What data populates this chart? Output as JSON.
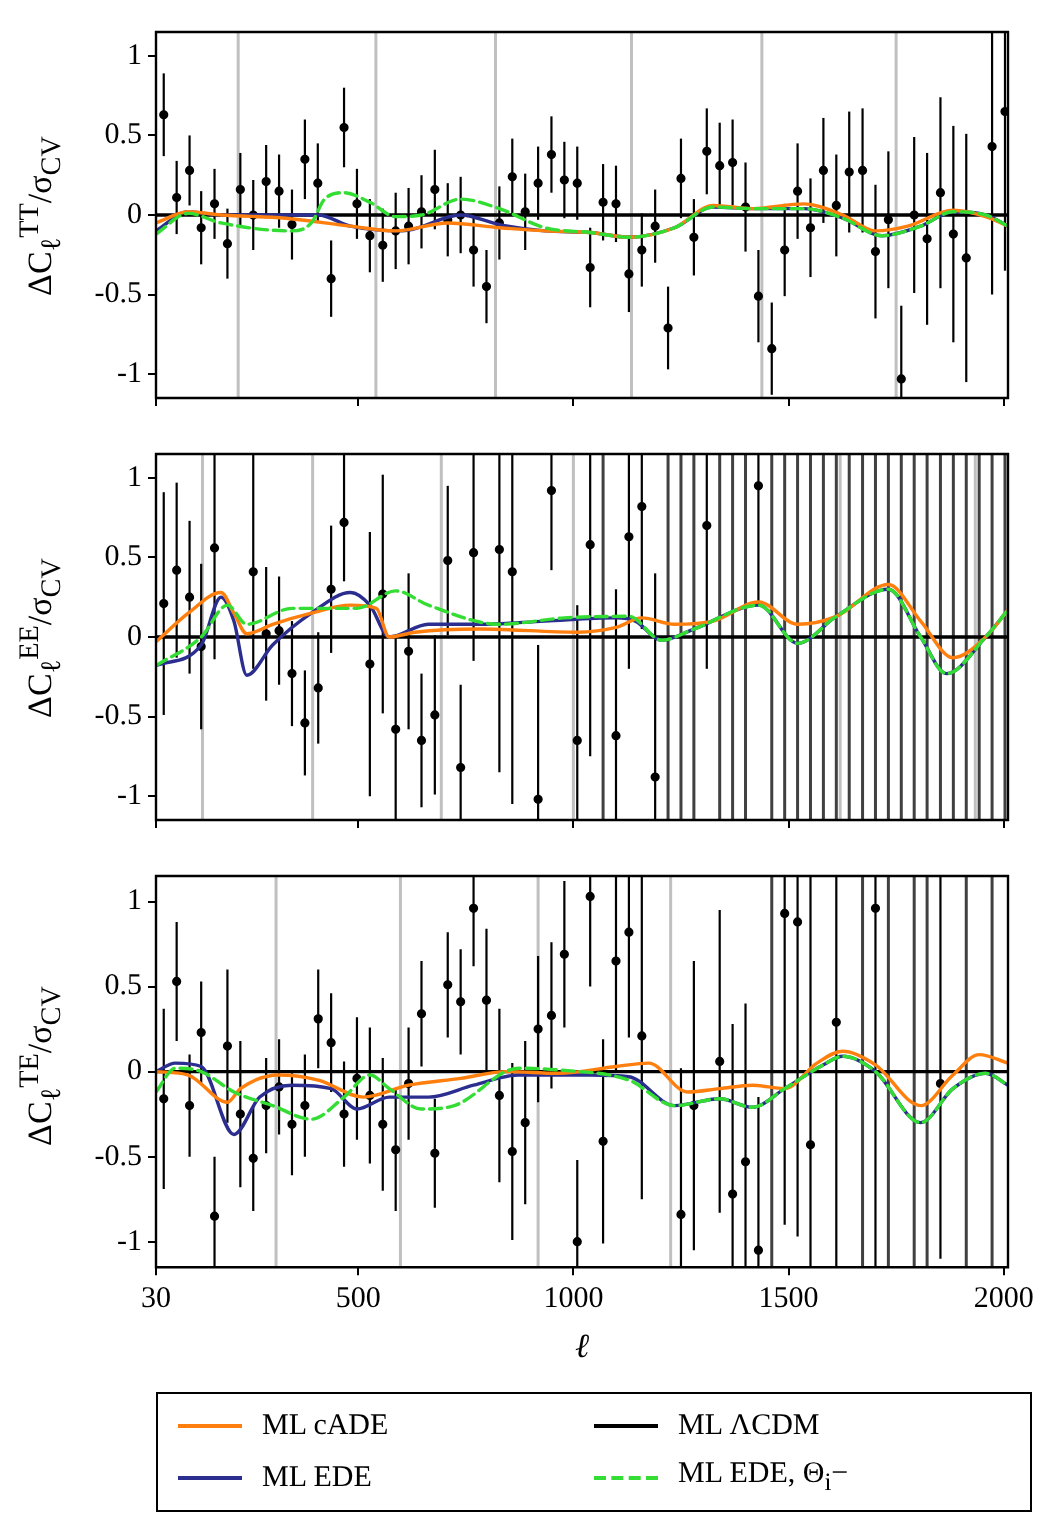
{
  "chart_data": [
    {
      "type": "scatter",
      "ylabel": "ΔC$_{ℓ}$$^{TT}$/σ$_{CV}$",
      "xlim": [
        30,
        2010
      ],
      "xticks": [
        30,
        500,
        1000,
        1500,
        2000
      ],
      "ylim": [
        -1.15,
        1.15
      ],
      "yticks": [
        -1,
        -0.5,
        0,
        0.5,
        1
      ],
      "tick_labels": "y",
      "series": [
        {
          "type": "scatter",
          "color": "#000000",
          "marker": "circle",
          "x": [
            48,
            78,
            108,
            135,
            166,
            196,
            226,
            256,
            286,
            316,
            346,
            376,
            406,
            437,
            467,
            497,
            527,
            557,
            587,
            617,
            647,
            678,
            708,
            738,
            768,
            798,
            828,
            858,
            888,
            918,
            949,
            979,
            1009,
            1039,
            1069,
            1099,
            1129,
            1159,
            1190,
            1220,
            1250,
            1280,
            1310,
            1340,
            1370,
            1400,
            1430,
            1461,
            1491,
            1521,
            1551,
            1581,
            1611,
            1641,
            1672,
            1702,
            1732,
            1762,
            1792,
            1822,
            1853,
            1883,
            1913,
            1973,
            2003
          ],
          "values": [
            0.63,
            0.11,
            0.28,
            -0.08,
            0.07,
            -0.18,
            0.16,
            0.0,
            0.21,
            0.15,
            -0.06,
            0.35,
            0.2,
            -0.4,
            0.55,
            0.07,
            -0.13,
            -0.19,
            -0.1,
            -0.07,
            0.02,
            0.16,
            -0.03,
            0.0,
            -0.22,
            -0.45,
            -0.05,
            0.24,
            0.02,
            0.2,
            0.38,
            0.22,
            0.2,
            -0.33,
            0.08,
            0.07,
            -0.37,
            -0.22,
            -0.07,
            -0.71,
            0.23,
            -0.14,
            0.4,
            0.31,
            0.33,
            0.05,
            -0.51,
            -0.84,
            -0.22,
            0.15,
            -0.08,
            0.28,
            0.06,
            0.27,
            0.28,
            -0.23,
            -0.03,
            -1.03,
            0.0,
            -0.15,
            0.14,
            -0.12,
            -0.27,
            0.43,
            0.65
          ],
          "errors": [
            0.26,
            0.23,
            0.22,
            0.23,
            0.22,
            0.22,
            0.23,
            0.22,
            0.23,
            0.23,
            0.22,
            0.25,
            0.25,
            0.24,
            0.25,
            0.22,
            0.23,
            0.23,
            0.24,
            0.24,
            0.23,
            0.25,
            0.23,
            0.24,
            0.23,
            0.23,
            0.23,
            0.24,
            0.24,
            0.23,
            0.24,
            0.24,
            0.23,
            0.25,
            0.24,
            0.24,
            0.24,
            0.23,
            0.23,
            0.26,
            0.25,
            0.24,
            0.27,
            0.27,
            0.27,
            0.28,
            0.29,
            0.29,
            0.29,
            0.3,
            0.31,
            0.33,
            0.32,
            0.38,
            0.39,
            0.42,
            0.43,
            [
              -1.15,
              -0.57
            ],
            0.49,
            0.54,
            0.6,
            0.68,
            0.78,
            [
              -0.5,
              1.15
            ],
            [
              -0.35,
              1.15
            ]
          ]
        },
        {
          "type": "line",
          "color": "#ff7f0e",
          "x": [
            30,
            105,
            181,
            331,
            482,
            587,
            708,
            828,
            934,
            1039,
            1129,
            1235,
            1325,
            1416,
            1536,
            1626,
            1702,
            1777,
            1882,
            1958,
            2010
          ],
          "values": [
            -0.05,
            0.02,
            0.0,
            -0.02,
            -0.07,
            -0.1,
            -0.05,
            -0.08,
            -0.1,
            -0.11,
            -0.14,
            -0.08,
            0.06,
            0.04,
            0.07,
            0.0,
            -0.1,
            -0.07,
            0.03,
            -0.01,
            -0.07
          ]
        },
        {
          "type": "line",
          "color": "#2b2d8f",
          "x": [
            30,
            105,
            181,
            331,
            407,
            482,
            602,
            738,
            828,
            934,
            1039,
            1129,
            1235,
            1325,
            1416,
            1536,
            1626,
            1717,
            1807,
            1882,
            1958,
            2010
          ],
          "values": [
            -0.1,
            0.02,
            0.0,
            0.0,
            0.0,
            -0.07,
            -0.1,
            0.0,
            -0.06,
            -0.1,
            -0.11,
            -0.14,
            -0.08,
            0.05,
            0.04,
            0.04,
            -0.02,
            -0.13,
            -0.07,
            0.02,
            0.0,
            -0.07
          ]
        },
        {
          "type": "line",
          "color": "#000000",
          "x": [
            30,
            2010
          ],
          "values": [
            0,
            0
          ]
        },
        {
          "type": "line",
          "color": "#33dd33",
          "line_style": "dashed",
          "x": [
            30,
            105,
            181,
            346,
            391,
            422,
            467,
            527,
            587,
            647,
            738,
            828,
            934,
            1039,
            1129,
            1235,
            1325,
            1416,
            1536,
            1626,
            1717,
            1807,
            1882,
            1958,
            2010
          ],
          "values": [
            -0.12,
            0.01,
            -0.05,
            -0.1,
            -0.05,
            0.1,
            0.14,
            0.08,
            -0.01,
            0.0,
            0.1,
            0.04,
            -0.08,
            -0.11,
            -0.14,
            -0.08,
            0.05,
            0.04,
            0.04,
            -0.02,
            -0.13,
            -0.07,
            0.02,
            0.0,
            -0.07
          ]
        }
      ],
      "ref_lines": [
        {
          "axis": "x",
          "value": 221,
          "color": "#c0c0c0"
        },
        {
          "axis": "x",
          "value": 541,
          "color": "#c0c0c0"
        },
        {
          "axis": "x",
          "value": 819,
          "color": "#c0c0c0"
        },
        {
          "axis": "x",
          "value": 1135,
          "color": "#c0c0c0"
        },
        {
          "axis": "x",
          "value": 1438,
          "color": "#c0c0c0"
        },
        {
          "axis": "x",
          "value": 1750,
          "color": "#c0c0c0"
        }
      ]
    },
    {
      "type": "scatter",
      "ylabel": "ΔC$_{ℓ}$$^{EE}$/σ$_{CV}$",
      "xlim": [
        30,
        2010
      ],
      "xticks": [
        30,
        500,
        1000,
        1500,
        2000
      ],
      "ylim": [
        -1.15,
        1.15
      ],
      "yticks": [
        -1,
        -0.5,
        0,
        0.5,
        1
      ],
      "tick_labels": "y",
      "series": [
        {
          "type": "scatter",
          "color": "#000000",
          "marker": "circle",
          "x": [
            48,
            78,
            108,
            135,
            166,
            256,
            286,
            316,
            346,
            376,
            407,
            437,
            467,
            527,
            557,
            587,
            617,
            647,
            678,
            708,
            738,
            768,
            828,
            858,
            918,
            949,
            1009,
            1039,
            1099,
            1129,
            1159,
            1190,
            1310,
            1430
          ],
          "values": [
            0.21,
            0.42,
            0.25,
            -0.06,
            0.56,
            0.41,
            0.02,
            0.04,
            -0.23,
            -0.54,
            -0.32,
            0.3,
            0.72,
            -0.17,
            0.27,
            -0.58,
            -0.09,
            -0.65,
            -0.49,
            0.48,
            -0.82,
            0.53,
            0.55,
            0.41,
            -1.02,
            0.92,
            -0.65,
            0.58,
            -0.62,
            0.63,
            0.82,
            -0.88,
            0.7,
            0.95
          ],
          "errors": [
            0.7,
            0.55,
            0.48,
            0.52,
            [
              -0.14,
              1.15
            ],
            [
              -0.2,
              1.15
            ],
            0.42,
            0.34,
            0.33,
            0.33,
            0.35,
            0.4,
            [
              0.35,
              1.15
            ],
            0.83,
            0.75,
            [
              -1.15,
              0.0
            ],
            0.49,
            0.42,
            0.5,
            0.47,
            [
              -1.15,
              -0.3
            ],
            [
              -0.15,
              1.15
            ],
            [
              -0.85,
              1.15
            ],
            [
              -1.05,
              1.15
            ],
            [
              -1.15,
              -0.05
            ],
            [
              0.42,
              1.15
            ],
            [
              -1.15,
              0.2
            ],
            [
              -0.75,
              1.15
            ],
            [
              -1.15,
              0.3
            ],
            [
              -0.2,
              1.15
            ],
            [
              0.05,
              1.15
            ],
            [
              -1.15,
              0.4
            ],
            [
              -0.2,
              1.15
            ],
            [
              0.2,
              1.15
            ]
          ]
        },
        {
          "type": "line",
          "color": "#ff7f0e",
          "x": [
            30,
            105,
            181,
            211,
            241,
            301,
            391,
            482,
            542,
            572,
            632,
            783,
            1009,
            1099,
            1159,
            1235,
            1325,
            1431,
            1521,
            1611,
            1732,
            1807,
            1882,
            1958,
            2010
          ],
          "values": [
            -0.03,
            0.15,
            0.28,
            0.15,
            0.02,
            0.08,
            0.15,
            0.2,
            0.18,
            0.0,
            0.03,
            0.05,
            0.03,
            0.06,
            0.12,
            0.08,
            0.1,
            0.22,
            0.08,
            0.13,
            0.33,
            0.1,
            -0.13,
            0.0,
            0.17
          ]
        },
        {
          "type": "line",
          "color": "#2b2d8f",
          "x": [
            30,
            135,
            181,
            211,
            241,
            301,
            391,
            482,
            527,
            572,
            663,
            783,
            934,
            1099,
            1144,
            1205,
            1280,
            1431,
            1521,
            1611,
            1732,
            1807,
            1867,
            1958,
            2010
          ],
          "values": [
            -0.18,
            -0.05,
            0.25,
            0.1,
            -0.24,
            -0.05,
            0.15,
            0.28,
            0.2,
            0.0,
            0.08,
            0.08,
            0.1,
            0.12,
            0.1,
            -0.02,
            0.05,
            0.2,
            -0.04,
            0.13,
            0.3,
            0.0,
            -0.23,
            0.0,
            0.17
          ]
        },
        {
          "type": "line",
          "color": "#000000",
          "x": [
            30,
            2010
          ],
          "values": [
            0,
            0
          ]
        },
        {
          "type": "line",
          "color": "#33dd33",
          "line_style": "dashed",
          "x": [
            30,
            135,
            196,
            241,
            346,
            497,
            587,
            663,
            828,
            979,
            1129,
            1205,
            1280,
            1431,
            1521,
            1611,
            1732,
            1807,
            1867,
            1958,
            2010
          ],
          "values": [
            -0.18,
            0.0,
            0.2,
            0.08,
            0.18,
            0.18,
            0.29,
            0.2,
            0.08,
            0.12,
            0.13,
            -0.02,
            0.05,
            0.2,
            -0.04,
            0.13,
            0.3,
            0.0,
            -0.23,
            0.0,
            0.17
          ]
        }
      ],
      "ref_lines": [
        {
          "axis": "x",
          "value": 138,
          "color": "#c0c0c0"
        },
        {
          "axis": "x",
          "value": 394,
          "color": "#c0c0c0"
        },
        {
          "axis": "x",
          "value": 693,
          "color": "#c0c0c0"
        },
        {
          "axis": "x",
          "value": 1000,
          "color": "#c0c0c0"
        },
        {
          "axis": "x",
          "value": 1620,
          "color": "#c0c0c0"
        },
        {
          "axis": "x",
          "value": 1934,
          "color": "#c0c0c0"
        },
        {
          "axis": "x",
          "value": 1069,
          "color": "#404040"
        },
        {
          "axis": "x",
          "value": 1220,
          "color": "#404040"
        },
        {
          "axis": "x",
          "value": 1250,
          "color": "#404040"
        },
        {
          "axis": "x",
          "value": 1280,
          "color": "#404040"
        },
        {
          "axis": "x",
          "value": 1340,
          "color": "#404040"
        },
        {
          "axis": "x",
          "value": 1370,
          "color": "#404040"
        },
        {
          "axis": "x",
          "value": 1400,
          "color": "#404040"
        },
        {
          "axis": "x",
          "value": 1461,
          "color": "#404040"
        },
        {
          "axis": "x",
          "value": 1491,
          "color": "#404040"
        },
        {
          "axis": "x",
          "value": 1521,
          "color": "#404040"
        },
        {
          "axis": "x",
          "value": 1551,
          "color": "#404040"
        },
        {
          "axis": "x",
          "value": 1581,
          "color": "#404040"
        },
        {
          "axis": "x",
          "value": 1611,
          "color": "#404040"
        },
        {
          "axis": "x",
          "value": 1641,
          "color": "#404040"
        },
        {
          "axis": "x",
          "value": 1672,
          "color": "#404040"
        },
        {
          "axis": "x",
          "value": 1702,
          "color": "#404040"
        },
        {
          "axis": "x",
          "value": 1732,
          "color": "#404040"
        },
        {
          "axis": "x",
          "value": 1762,
          "color": "#404040"
        },
        {
          "axis": "x",
          "value": 1792,
          "color": "#404040"
        },
        {
          "axis": "x",
          "value": 1822,
          "color": "#404040"
        },
        {
          "axis": "x",
          "value": 1853,
          "color": "#404040"
        },
        {
          "axis": "x",
          "value": 1883,
          "color": "#404040"
        },
        {
          "axis": "x",
          "value": 1913,
          "color": "#404040"
        },
        {
          "axis": "x",
          "value": 1943,
          "color": "#404040"
        },
        {
          "axis": "x",
          "value": 1973,
          "color": "#404040"
        },
        {
          "axis": "x",
          "value": 2003,
          "color": "#404040"
        }
      ]
    },
    {
      "type": "scatter",
      "ylabel": "ΔC$_{ℓ}$$^{TE}$/σ$_{CV}$",
      "xlabel": "ℓ",
      "xlim": [
        30,
        2010
      ],
      "xticks": [
        30,
        500,
        1000,
        1500,
        2000
      ],
      "ylim": [
        -1.15,
        1.15
      ],
      "yticks": [
        -1,
        -0.5,
        0,
        0.5,
        1
      ],
      "legend": "bottom",
      "series": [
        {
          "type": "scatter",
          "color": "#000000",
          "marker": "circle",
          "x": [
            48,
            78,
            108,
            135,
            166,
            196,
            226,
            256,
            286,
            316,
            346,
            376,
            407,
            437,
            467,
            497,
            527,
            557,
            587,
            617,
            647,
            678,
            708,
            738,
            768,
            798,
            828,
            858,
            888,
            918,
            949,
            979,
            1009,
            1039,
            1069,
            1099,
            1129,
            1159,
            1250,
            1280,
            1340,
            1370,
            1400,
            1430,
            1491,
            1521,
            1551,
            1611,
            1702,
            1853
          ],
          "values": [
            -0.16,
            0.53,
            -0.2,
            0.23,
            -0.85,
            0.15,
            -0.25,
            -0.51,
            -0.2,
            -0.09,
            -0.31,
            -0.2,
            0.31,
            0.17,
            -0.25,
            -0.04,
            -0.14,
            -0.31,
            -0.46,
            -0.07,
            0.34,
            -0.48,
            0.51,
            0.41,
            0.96,
            0.42,
            -0.14,
            -0.47,
            -0.3,
            0.25,
            0.33,
            0.69,
            -1.0,
            1.03,
            -0.41,
            0.65,
            0.82,
            0.21,
            -0.84,
            -0.2,
            0.06,
            -0.72,
            -0.53,
            -1.05,
            0.93,
            0.88,
            -0.43,
            0.29,
            0.96,
            -0.07
          ],
          "errors": [
            0.53,
            0.35,
            0.3,
            0.3,
            [
              -1.15,
              -0.5
            ],
            0.45,
            0.43,
            0.31,
            0.28,
            0.28,
            0.3,
            0.3,
            0.29,
            0.29,
            0.31,
            0.36,
            0.4,
            0.39,
            0.36,
            0.33,
            0.31,
            0.32,
            0.31,
            0.31,
            [
              0.62,
              1.15
            ],
            0.42,
            0.51,
            0.52,
            0.48,
            0.43,
            0.43,
            0.43,
            [
              -1.15,
              -0.52
            ],
            [
              0.5,
              1.15
            ],
            0.6,
            [
              0.0,
              1.15
            ],
            [
              0.2,
              1.15
            ],
            [
              -0.75,
              1.15
            ],
            [
              -1.15,
              0.02
            ],
            0.85,
            0.89,
            [
              -1.15,
              0.28
            ],
            [
              -1.15,
              0.4
            ],
            [
              -1.15,
              -0.15
            ],
            [
              -0.9,
              1.15
            ],
            [
              -0.97,
              1.15
            ],
            [
              -1.15,
              1.15
            ],
            [
              -1.15,
              1.15
            ],
            [
              -1.15,
              1.15
            ],
            [
              -1.1,
              1.15
            ]
          ]
        },
        {
          "type": "line",
          "name": "ML cADE",
          "color": "#ff7f0e",
          "x": [
            30,
            105,
            196,
            226,
            316,
            407,
            512,
            617,
            738,
            843,
            964,
            1099,
            1175,
            1265,
            1340,
            1416,
            1491,
            1566,
            1626,
            1702,
            1807,
            1882,
            1943,
            2010
          ],
          "values": [
            0.0,
            -0.02,
            -0.18,
            -0.1,
            -0.02,
            -0.05,
            -0.15,
            -0.08,
            -0.04,
            0.0,
            -0.01,
            0.03,
            0.05,
            -0.12,
            -0.1,
            -0.08,
            -0.1,
            0.05,
            0.12,
            0.04,
            -0.2,
            -0.02,
            0.1,
            0.05
          ]
        },
        {
          "type": "line",
          "name": "ML EDE",
          "color": "#2b2d8f",
          "x": [
            30,
            75,
            135,
            211,
            271,
            346,
            437,
            497,
            572,
            663,
            768,
            873,
            1039,
            1129,
            1235,
            1340,
            1416,
            1491,
            1581,
            1626,
            1702,
            1807,
            1882,
            1958,
            2010
          ],
          "values": [
            0.0,
            0.05,
            0.03,
            -0.37,
            -0.15,
            -0.08,
            -0.1,
            -0.22,
            -0.15,
            -0.15,
            -0.08,
            -0.02,
            -0.02,
            -0.03,
            -0.2,
            -0.16,
            -0.21,
            -0.1,
            0.04,
            0.09,
            0.0,
            -0.3,
            -0.1,
            -0.01,
            -0.08
          ]
        },
        {
          "type": "line",
          "name": "ML ΛCDM",
          "color": "#000000",
          "x": [
            30,
            2010
          ],
          "values": [
            0,
            0
          ]
        },
        {
          "type": "line",
          "name": "ML EDE, Θ$_{i}$−",
          "color": "#33dd33",
          "line_style": "dashed",
          "x": [
            30,
            75,
            135,
            211,
            301,
            391,
            467,
            527,
            572,
            647,
            723,
            873,
            964,
            1129,
            1235,
            1340,
            1416,
            1491,
            1581,
            1626,
            1702,
            1807,
            1882,
            1958,
            2010
          ],
          "values": [
            -0.12,
            0.02,
            0.0,
            -0.12,
            -0.2,
            -0.28,
            -0.15,
            -0.02,
            -0.1,
            -0.22,
            -0.2,
            0.02,
            0.01,
            -0.05,
            -0.2,
            -0.16,
            -0.21,
            -0.1,
            0.04,
            0.09,
            0.0,
            -0.3,
            -0.1,
            -0.01,
            -0.08
          ]
        }
      ],
      "ref_lines": [
        {
          "axis": "x",
          "value": 309,
          "color": "#c0c0c0"
        },
        {
          "axis": "x",
          "value": 598,
          "color": "#c0c0c0"
        },
        {
          "axis": "x",
          "value": 918,
          "color": "#c0c0c0"
        },
        {
          "axis": "x",
          "value": 1226,
          "color": "#c0c0c0"
        },
        {
          "axis": "x",
          "value": 1461,
          "color": "#404040"
        },
        {
          "axis": "x",
          "value": 1672,
          "color": "#404040"
        },
        {
          "axis": "x",
          "value": 1732,
          "color": "#404040"
        },
        {
          "axis": "x",
          "value": 1792,
          "color": "#404040"
        },
        {
          "axis": "x",
          "value": 1822,
          "color": "#404040"
        },
        {
          "axis": "x",
          "value": 1913,
          "color": "#404040"
        },
        {
          "axis": "x",
          "value": 1973,
          "color": "#404040"
        }
      ]
    }
  ]
}
